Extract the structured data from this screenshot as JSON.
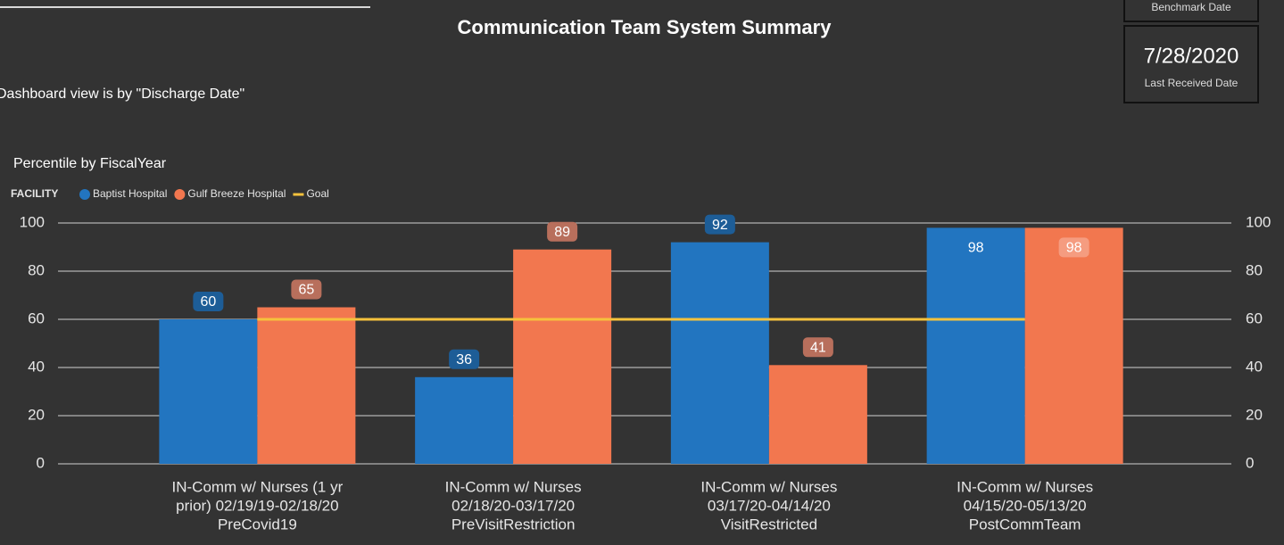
{
  "header": {
    "title": "Communication Team System Summary",
    "note": "Dashboard view is by \"Discharge Date\"",
    "benchmark_label": "Benchmark Date",
    "last_received_value": "7/28/2020",
    "last_received_label": "Last Received Date"
  },
  "chart_data": {
    "type": "bar",
    "title": "Percentile by FiscalYear",
    "legend_title": "FACILITY",
    "categories": [
      [
        "IN-Comm w/ Nurses (1 yr",
        "prior) 02/19/19-02/18/20",
        "PreCovid19"
      ],
      [
        "IN-Comm w/ Nurses",
        "02/18/20-03/17/20",
        "PreVisitRestriction"
      ],
      [
        "IN-Comm w/ Nurses",
        "03/17/20-04/14/20",
        "VisitRestricted"
      ],
      [
        "IN-Comm w/ Nurses",
        "04/15/20-05/13/20",
        "PostCommTeam"
      ]
    ],
    "series": [
      {
        "name": "Baptist Hospital",
        "color": "#2275c0",
        "label_color": "#1d5d97",
        "values": [
          60,
          36,
          92,
          98
        ]
      },
      {
        "name": "Gulf Breeze Hospital",
        "color": "#f2774f",
        "label_color": "#b86f5c",
        "values": [
          65,
          89,
          41,
          98
        ]
      },
      {
        "name": "Goal",
        "type": "line",
        "color": "#f5c23c",
        "values": [
          60,
          60,
          60,
          60
        ]
      }
    ],
    "ylim": [
      0,
      100
    ],
    "yticks": [
      0,
      20,
      40,
      60,
      80,
      100
    ],
    "y2lim": [
      0,
      100
    ],
    "y2ticks": [
      0,
      20,
      40,
      60,
      80,
      100
    ],
    "grid": true
  }
}
